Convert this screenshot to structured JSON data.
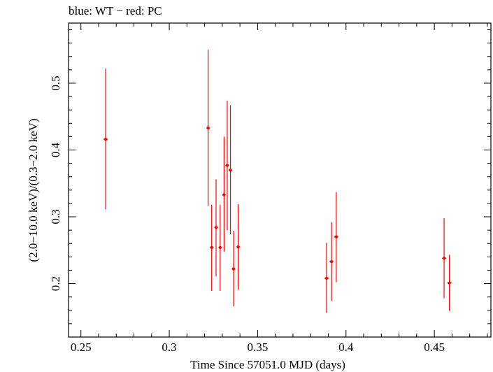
{
  "header": {
    "text": "blue: WT − red: PC"
  },
  "chart_data": {
    "type": "scatter",
    "title": "blue: WT − red: PC",
    "xlabel": "Time Since 57051.0 MJD (days)",
    "ylabel": "(2.0−10.0 keV)/(0.3−2.0 keV)",
    "xlim": [
      0.243,
      0.482
    ],
    "ylim": [
      0.12,
      0.59
    ],
    "x_ticks": [
      0.25,
      0.3,
      0.35,
      0.4,
      0.45
    ],
    "x_tick_labels": [
      "0.25",
      "0.3",
      "0.35",
      "0.4",
      "0.45"
    ],
    "y_ticks": [
      0.2,
      0.3,
      0.4,
      0.5
    ],
    "y_tick_labels": [
      "0.2",
      "0.3",
      "0.4",
      "0.5"
    ],
    "grid": false,
    "series": [
      {
        "name": "PC",
        "color": "#ff0000",
        "points": [
          {
            "x": 0.264,
            "y": 0.416,
            "y_low": 0.311,
            "y_high": 0.522,
            "x_err": 0.0012
          },
          {
            "x": 0.322,
            "y": 0.433,
            "y_low": 0.316,
            "y_high": 0.55,
            "x_err": 0.001
          },
          {
            "x": 0.324,
            "y": 0.254,
            "y_low": 0.189,
            "y_high": 0.318,
            "x_err": 0.001
          },
          {
            "x": 0.3265,
            "y": 0.284,
            "y_low": 0.211,
            "y_high": 0.356,
            "x_err": 0.001
          },
          {
            "x": 0.3288,
            "y": 0.254,
            "y_low": 0.189,
            "y_high": 0.318,
            "x_err": 0.001
          },
          {
            "x": 0.331,
            "y": 0.333,
            "y_low": 0.248,
            "y_high": 0.42,
            "x_err": 0.001
          },
          {
            "x": 0.3328,
            "y": 0.377,
            "y_low": 0.28,
            "y_high": 0.474,
            "x_err": 0.001
          },
          {
            "x": 0.3346,
            "y": 0.37,
            "y_low": 0.274,
            "y_high": 0.467,
            "x_err": 0.001
          },
          {
            "x": 0.3364,
            "y": 0.222,
            "y_low": 0.166,
            "y_high": 0.279,
            "x_err": 0.001
          },
          {
            "x": 0.339,
            "y": 0.255,
            "y_low": 0.191,
            "y_high": 0.319,
            "x_err": 0.001
          },
          {
            "x": 0.389,
            "y": 0.208,
            "y_low": 0.156,
            "y_high": 0.261,
            "x_err": 0.0012
          },
          {
            "x": 0.3918,
            "y": 0.233,
            "y_low": 0.174,
            "y_high": 0.292,
            "x_err": 0.0012
          },
          {
            "x": 0.3945,
            "y": 0.27,
            "y_low": 0.202,
            "y_high": 0.337,
            "x_err": 0.0012
          },
          {
            "x": 0.4555,
            "y": 0.238,
            "y_low": 0.178,
            "y_high": 0.298,
            "x_err": 0.0012
          },
          {
            "x": 0.4585,
            "y": 0.201,
            "y_low": 0.159,
            "y_high": 0.243,
            "x_err": 0.0012
          }
        ]
      }
    ]
  }
}
